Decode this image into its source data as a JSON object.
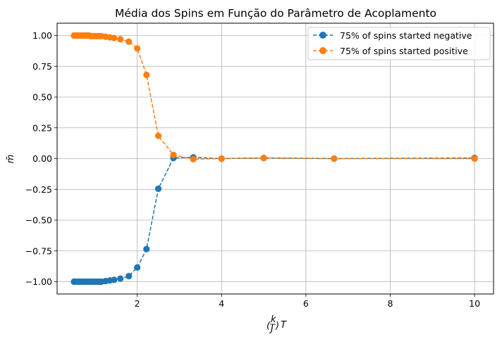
{
  "chart_data": {
    "type": "line",
    "title": "Média dos Spins em Função do Parâmetro de Acoplamento",
    "xlabel": "(k/J)T",
    "ylabel": "m̄",
    "xlim": [
      0.1,
      10.45
    ],
    "ylim": [
      -1.1,
      1.1
    ],
    "xticks": [
      2,
      4,
      6,
      8,
      10
    ],
    "xtick_labels": [
      "2",
      "4",
      "6",
      "8",
      "10"
    ],
    "yticks": [
      1.0,
      0.75,
      0.5,
      0.25,
      0.0,
      -0.25,
      -0.5,
      -0.75,
      -1.0
    ],
    "ytick_labels": [
      "1.00",
      "0.75",
      "0.50",
      "0.25",
      "0.00",
      "−0.25",
      "−0.50",
      "−0.75",
      "−1.00"
    ],
    "grid": true,
    "legend_position": "top-right",
    "x": [
      0.5,
      0.55,
      0.6,
      0.65,
      0.7,
      0.75,
      0.8,
      0.85,
      0.9,
      0.95,
      1.0,
      1.05,
      1.1,
      1.15,
      1.25,
      1.35,
      1.45,
      1.6,
      1.8,
      2.0,
      2.22,
      2.5,
      2.86,
      3.33,
      4.0,
      5.0,
      6.67,
      10.0
    ],
    "series": [
      {
        "name": "75% of spins started negative",
        "color": "#1f77b4",
        "values": [
          -1.0,
          -1.0,
          -1.0,
          -1.0,
          -1.0,
          -1.0,
          -1.0,
          -1.0,
          -1.0,
          -1.0,
          -1.0,
          -1.0,
          -1.0,
          -1.0,
          -0.995,
          -0.99,
          -0.985,
          -0.975,
          -0.955,
          -0.885,
          -0.735,
          -0.245,
          0.005,
          0.01,
          0.0,
          0.005,
          0.0,
          0.005
        ]
      },
      {
        "name": "75% of spins started positive",
        "color": "#ff7f0e",
        "values": [
          1.0,
          1.0,
          1.0,
          1.0,
          1.0,
          1.0,
          1.0,
          1.0,
          0.995,
          0.995,
          0.995,
          0.995,
          0.995,
          0.995,
          0.99,
          0.985,
          0.98,
          0.97,
          0.95,
          0.895,
          0.68,
          0.185,
          0.03,
          -0.005,
          0.0,
          0.005,
          0.0,
          0.0
        ]
      }
    ]
  }
}
